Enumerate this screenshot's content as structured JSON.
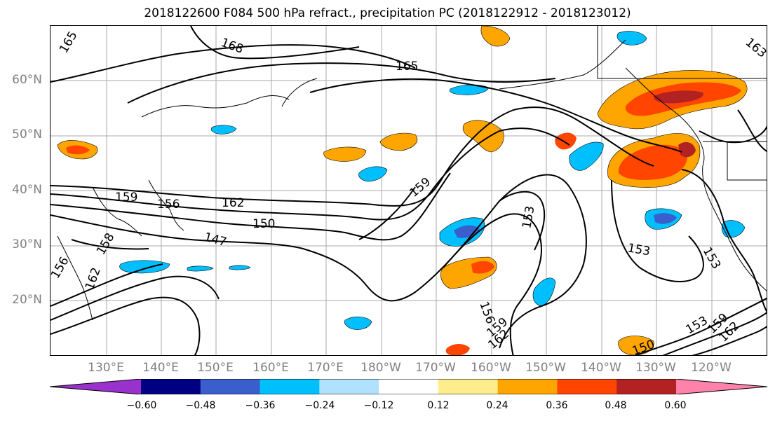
{
  "title": "2018122600 F084 500 hPa refract., precipitation PC (2018122912 - 2018123012)",
  "lat_labels": [
    "60°N",
    "50°N",
    "40°N",
    "30°N",
    "20°N"
  ],
  "lon_labels": [
    "130°E",
    "140°E",
    "150°E",
    "160°E",
    "170°E",
    "180°W",
    "170°W",
    "160°W",
    "150°W",
    "140°W",
    "130°W",
    "120°W"
  ],
  "contour_labels": [
    "165",
    "168",
    "165",
    "159",
    "156",
    "162",
    "150",
    "147",
    "159",
    "153",
    "153",
    "153",
    "156",
    "159",
    "162",
    "150",
    "153",
    "159",
    "162",
    "162",
    "156",
    "158",
    "163"
  ],
  "colorbar": {
    "ticks": [
      "−0.60",
      "−0.48",
      "−0.36",
      "−0.24",
      "−0.12",
      "0.12",
      "0.24",
      "0.36",
      "0.48",
      "0.60"
    ],
    "colors": [
      "#9932CC",
      "#000080",
      "#3A5FCD",
      "#00BFFF",
      "#B0E2FF",
      "#FFFFFF",
      "#FFEC8B",
      "#FFA500",
      "#FF4500",
      "#B22222",
      "#FF82AB"
    ]
  }
}
